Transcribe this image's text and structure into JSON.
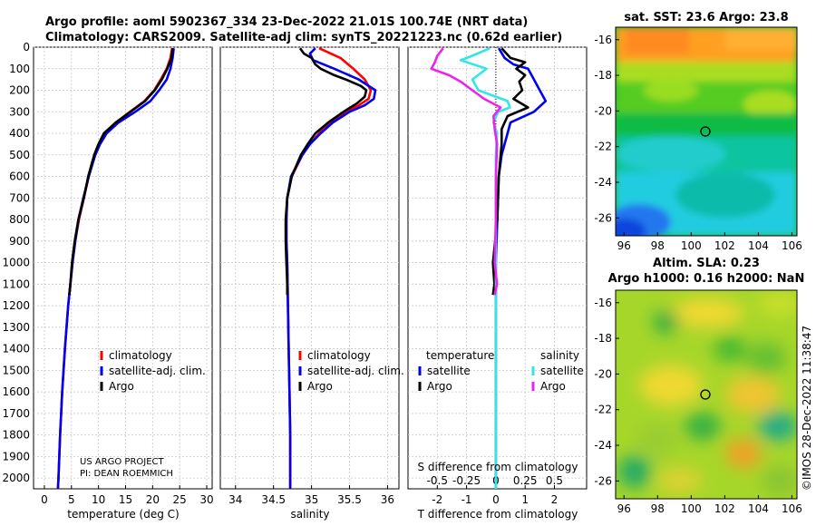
{
  "header": {
    "line1": "Argo profile: aoml 5902367_334 23-Dec-2022 21.01S 100.74E (NRT data)",
    "line2": "Climatology: CARS2009. Satellite-adj clim: synTS_20221223.nc (0.62d earlier)"
  },
  "credit": {
    "line1": "US ARGO PROJECT",
    "line2": "PI: DEAN ROEMMICH"
  },
  "copyright": "©IMOS 28-Dec-2022 11:38:47",
  "colors": {
    "climatology": "#ff0000",
    "satellite": "#0000ee",
    "argo": "#000000",
    "sat_salinity": "#33e6e6",
    "argo_salinity": "#ee22ee"
  },
  "chart_data": [
    {
      "type": "line",
      "panel": "temperature",
      "xlabel": "temperature (deg C)",
      "xlim": [
        -2,
        31
      ],
      "xticks": [
        0,
        5,
        10,
        15,
        20,
        25,
        30
      ],
      "ylim": [
        2050,
        0
      ],
      "yticks": [
        0,
        100,
        200,
        300,
        400,
        500,
        600,
        700,
        800,
        900,
        1000,
        1100,
        1200,
        1300,
        1400,
        1500,
        1600,
        1700,
        1800,
        1900,
        2000
      ],
      "legend": [
        "climatology",
        "satellite-adj. clim.",
        "Argo"
      ],
      "series": [
        {
          "name": "climatology",
          "depth": [
            5,
            50,
            100,
            150,
            200,
            250,
            300,
            350,
            400,
            450,
            500,
            600,
            700,
            800,
            900,
            1000,
            1200,
            1400,
            1600,
            1800,
            2000,
            2050
          ],
          "values": [
            23.6,
            23.3,
            22.6,
            21.5,
            20.3,
            18.5,
            15.8,
            13.2,
            11.2,
            10.1,
            9.3,
            8.2,
            7.3,
            6.4,
            5.7,
            5.2,
            4.4,
            3.8,
            3.3,
            2.9,
            2.6,
            2.5
          ]
        },
        {
          "name": "satellite-adj. clim.",
          "depth": [
            5,
            50,
            100,
            150,
            200,
            250,
            300,
            350,
            400,
            450,
            500,
            600,
            700,
            800,
            900,
            1000,
            1200,
            1400,
            1600,
            1800,
            2000,
            2050
          ],
          "values": [
            23.9,
            23.7,
            23.3,
            22.6,
            21.2,
            19.6,
            16.8,
            13.7,
            11.5,
            10.3,
            9.4,
            8.2,
            7.2,
            6.3,
            5.7,
            5.2,
            4.4,
            3.8,
            3.3,
            2.9,
            2.6,
            2.5
          ]
        },
        {
          "name": "Argo",
          "depth": [
            5,
            50,
            100,
            150,
            200,
            250,
            300,
            350,
            400,
            450,
            500,
            600,
            700,
            800,
            900,
            1000,
            1100,
            1150
          ],
          "values": [
            23.7,
            23.5,
            22.7,
            21.7,
            20.4,
            18.6,
            15.9,
            13.2,
            11.0,
            10.0,
            9.2,
            8.1,
            7.3,
            6.3,
            5.6,
            5.1,
            4.8,
            4.6
          ]
        }
      ]
    },
    {
      "type": "line",
      "panel": "salinity",
      "xlabel": "salinity",
      "xlim": [
        33.8,
        36.15
      ],
      "xticks": [
        34,
        34.5,
        35,
        35.5,
        36
      ],
      "ylim": [
        2050,
        0
      ],
      "legend": [
        "climatology",
        "satellite-adj. clim.",
        "Argo"
      ],
      "series": [
        {
          "name": "climatology",
          "depth": [
            5,
            50,
            100,
            150,
            200,
            240,
            270,
            300,
            350,
            400,
            450,
            500,
            600,
            700,
            800,
            900,
            1000,
            1200,
            1400,
            1600,
            1800,
            2000,
            2050
          ],
          "values": [
            35.1,
            35.38,
            35.55,
            35.7,
            35.78,
            35.75,
            35.62,
            35.45,
            35.25,
            35.1,
            34.98,
            34.88,
            34.74,
            34.68,
            34.67,
            34.67,
            34.68,
            34.69,
            34.7,
            34.71,
            34.72,
            34.72,
            34.72
          ]
        },
        {
          "name": "satellite-adj. clim.",
          "depth": [
            5,
            30,
            60,
            100,
            150,
            200,
            240,
            270,
            300,
            350,
            400,
            450,
            500,
            600,
            700,
            800,
            900,
            1000,
            1200,
            1400,
            1600,
            1800,
            2000,
            2050
          ],
          "values": [
            35.05,
            34.98,
            35.02,
            35.3,
            35.62,
            35.84,
            35.82,
            35.7,
            35.5,
            35.28,
            35.12,
            34.98,
            34.88,
            34.73,
            34.68,
            34.67,
            34.67,
            34.68,
            34.69,
            34.7,
            34.71,
            34.72,
            34.72,
            34.72
          ]
        },
        {
          "name": "Argo",
          "depth": [
            5,
            30,
            50,
            80,
            100,
            130,
            150,
            180,
            200,
            230,
            260,
            300,
            350,
            400,
            450,
            500,
            600,
            700,
            800,
            900,
            1000,
            1100,
            1150
          ],
          "values": [
            34.85,
            34.9,
            35.0,
            35.05,
            35.12,
            35.3,
            35.45,
            35.65,
            35.72,
            35.7,
            35.6,
            35.42,
            35.22,
            35.05,
            34.95,
            34.86,
            34.74,
            34.68,
            34.66,
            34.66,
            34.67,
            34.68,
            34.68
          ]
        }
      ]
    },
    {
      "type": "line",
      "panel": "difference",
      "xlabel": "T difference from climatology",
      "xlabel_top": "S difference from climatology",
      "xlim": [
        -3,
        3.1
      ],
      "xticks": [
        -2,
        -1,
        0,
        1,
        2
      ],
      "xticks_top": [
        "-0.5",
        "-0.25",
        "0",
        "0.25",
        "0.5"
      ],
      "ylim": [
        2050,
        0
      ],
      "legend_title_temperature": "temperature",
      "legend_title_salinity": "salinity",
      "legend_satellite": "satellite",
      "legend_argo": "Argo",
      "series": [
        {
          "name": "temperature satellite",
          "depth": [
            5,
            50,
            80,
            100,
            150,
            200,
            250,
            300,
            350,
            400,
            500,
            600,
            800,
            1000,
            1200,
            1400,
            1600,
            1800,
            2000,
            2050
          ],
          "values": [
            0.1,
            0.3,
            0.6,
            1.1,
            1.3,
            1.5,
            1.7,
            1.3,
            0.5,
            0.4,
            0.2,
            0.1,
            0.05,
            0,
            0,
            0,
            0,
            0,
            0,
            0
          ]
        },
        {
          "name": "temperature Argo",
          "depth": [
            5,
            50,
            70,
            100,
            130,
            160,
            200,
            240,
            280,
            320,
            380,
            450,
            600,
            800,
            1000,
            1100,
            1150
          ],
          "values": [
            0.2,
            0.5,
            1.0,
            0.7,
            1.0,
            0.8,
            0.9,
            0.6,
            1.1,
            0.4,
            0.2,
            0.2,
            0.1,
            0.05,
            -0.1,
            -0.05,
            -0.1
          ]
        },
        {
          "name": "salinity satellite",
          "depth": [
            5,
            40,
            60,
            100,
            150,
            200,
            250,
            280,
            300,
            350,
            400,
            500,
            600,
            800,
            1000,
            1400,
            2000,
            2050
          ],
          "values": [
            -0.05,
            -0.2,
            -0.3,
            -0.08,
            -0.2,
            -0.15,
            0.1,
            0.12,
            0.02,
            -0.02,
            0.01,
            0,
            0,
            0,
            0,
            0,
            0,
            0
          ]
        },
        {
          "name": "salinity Argo",
          "depth": [
            5,
            40,
            70,
            100,
            130,
            160,
            200,
            240,
            280,
            320,
            380,
            450,
            600,
            800,
            1000,
            1100,
            1150
          ],
          "values": [
            -0.45,
            -0.5,
            -0.52,
            -0.55,
            -0.4,
            -0.3,
            -0.2,
            -0.1,
            0.04,
            -0.02,
            -0.01,
            0.01,
            0,
            0,
            -0.01,
            0.01,
            -0.01
          ]
        }
      ]
    },
    {
      "type": "heatmap",
      "panel": "sat_sst",
      "title": "sat. SST: 23.6 Argo: 23.8",
      "xticks": [
        96,
        98,
        100,
        102,
        104,
        106
      ],
      "yticks": [
        -16,
        -18,
        -20,
        -22,
        -24,
        -26
      ],
      "marker": [
        100.74,
        -21.01
      ]
    },
    {
      "type": "heatmap",
      "panel": "altim_sla",
      "title": "Altim. SLA: 0.23",
      "subtitle": "Argo h1000: 0.16 h2000: NaN",
      "xticks": [
        96,
        98,
        100,
        102,
        104,
        106
      ],
      "yticks": [
        -16,
        -18,
        -20,
        -22,
        -24,
        -26
      ],
      "marker": [
        100.74,
        -21.01
      ]
    }
  ]
}
